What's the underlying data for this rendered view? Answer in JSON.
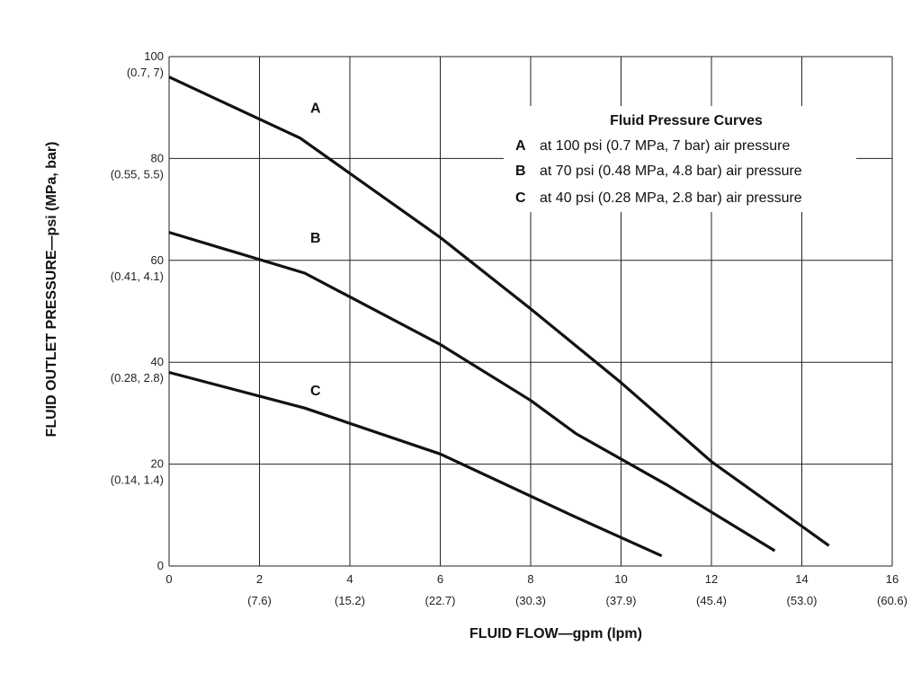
{
  "chart_data": {
    "type": "line",
    "xlabel": "FLUID FLOW—gpm (lpm)",
    "ylabel": "FLUID OUTLET PRESSURE—psi (MPa, bar)",
    "xlim": [
      0,
      16
    ],
    "ylim": [
      0,
      100
    ],
    "grid": true,
    "x_ticks": [
      {
        "value": 0,
        "label": "0",
        "sublabel": ""
      },
      {
        "value": 2,
        "label": "2",
        "sublabel": "(7.6)"
      },
      {
        "value": 4,
        "label": "4",
        "sublabel": "(15.2)"
      },
      {
        "value": 6,
        "label": "6",
        "sublabel": "(22.7)"
      },
      {
        "value": 8,
        "label": "8",
        "sublabel": "(30.3)"
      },
      {
        "value": 10,
        "label": "10",
        "sublabel": "(37.9)"
      },
      {
        "value": 12,
        "label": "12",
        "sublabel": "(45.4)"
      },
      {
        "value": 14,
        "label": "14",
        "sublabel": "(53.0)"
      },
      {
        "value": 16,
        "label": "16",
        "sublabel": "(60.6)"
      }
    ],
    "y_ticks": [
      {
        "value": 0,
        "label": "0",
        "sublabel": ""
      },
      {
        "value": 20,
        "label": "20",
        "sublabel": "(0.14, 1.4)"
      },
      {
        "value": 40,
        "label": "40",
        "sublabel": "(0.28, 2.8)"
      },
      {
        "value": 60,
        "label": "60",
        "sublabel": "(0.41, 4.1)"
      },
      {
        "value": 80,
        "label": "80",
        "sublabel": "(0.55, 5.5)"
      },
      {
        "value": 100,
        "label": "100",
        "sublabel": "(0.7, 7)"
      }
    ],
    "legend": {
      "title": "Fluid Pressure Curves",
      "placement": "top-right",
      "entries": [
        {
          "key": "A",
          "text": "at 100 psi (0.7 MPa, 7 bar) air pressure"
        },
        {
          "key": "B",
          "text": "at 70 psi (0.48 MPa, 4.8 bar) air pressure"
        },
        {
          "key": "C",
          "text": "at 40 psi (0.28 MPa, 2.8 bar) air pressure"
        }
      ]
    },
    "series": [
      {
        "name": "A",
        "x": [
          0,
          2.9,
          6,
          8,
          10,
          12,
          14.6
        ],
        "y": [
          96,
          84,
          64.5,
          50.5,
          36,
          20.5,
          4
        ]
      },
      {
        "name": "B",
        "x": [
          0,
          3,
          6,
          8,
          9,
          11,
          13.4
        ],
        "y": [
          65.5,
          57.5,
          43.5,
          32.5,
          26,
          16,
          3
        ]
      },
      {
        "name": "C",
        "x": [
          0,
          3,
          6,
          8.9,
          10.9
        ],
        "y": [
          38,
          31,
          22,
          10,
          2
        ]
      }
    ],
    "curve_labels": [
      {
        "series": "A",
        "text": "A",
        "x": 3,
        "y": 89
      },
      {
        "series": "B",
        "text": "B",
        "x": 3,
        "y": 63.5
      },
      {
        "series": "C",
        "text": "C",
        "x": 3,
        "y": 33.5
      }
    ]
  }
}
